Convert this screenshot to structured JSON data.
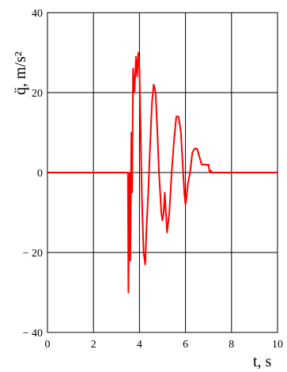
{
  "chart_data": {
    "type": "line",
    "xlabel": "t, s",
    "ylabel": "q̈, m/s²",
    "xlim": [
      0,
      10
    ],
    "ylim": [
      -40,
      40
    ],
    "x_ticks": [
      0,
      2,
      4,
      6,
      8,
      10
    ],
    "y_ticks": [
      -40,
      -20,
      0,
      20,
      40
    ],
    "x_tick_labels": [
      "0",
      "2",
      "4",
      "6",
      "8",
      "10"
    ],
    "y_tick_labels": [
      "− 40",
      "− 20",
      "0",
      "20",
      "40"
    ],
    "grid": true,
    "series": [
      {
        "color": "#ff0000",
        "x": [
          0,
          3.5,
          3.52,
          3.57,
          3.6,
          3.65,
          3.68,
          3.72,
          3.78,
          3.85,
          3.9,
          3.95,
          4.0,
          4.05,
          4.1,
          4.18,
          4.25,
          4.3,
          4.38,
          4.45,
          4.5,
          4.55,
          4.62,
          4.7,
          4.78,
          4.85,
          4.9,
          4.95,
          5.0,
          5.05,
          5.1,
          5.2,
          5.3,
          5.4,
          5.5,
          5.6,
          5.7,
          5.8,
          5.9,
          5.95,
          6.0,
          6.05,
          6.1,
          6.2,
          6.3,
          6.4,
          6.5,
          6.6,
          6.7,
          6.8,
          6.9,
          6.95,
          7.0,
          7.05,
          7.1,
          7.15,
          7.2,
          7.3,
          7.4,
          7.5,
          7.6,
          8.0,
          10.0
        ],
        "y": [
          0,
          0,
          -30,
          0,
          -22,
          10,
          -5,
          26,
          20,
          29,
          24,
          30,
          26,
          10,
          -5,
          -20,
          -23,
          -15,
          -5,
          5,
          12,
          18,
          22,
          20,
          10,
          0,
          -5,
          -10,
          -12,
          -10,
          -5,
          -15,
          -10,
          0,
          8,
          14,
          14,
          10,
          0,
          -5,
          -8,
          -6,
          -3,
          0,
          5,
          6,
          6,
          4,
          2,
          2,
          2,
          1.8,
          2,
          0,
          0.5,
          0,
          0,
          0,
          0,
          0,
          0,
          0,
          0
        ]
      }
    ]
  }
}
